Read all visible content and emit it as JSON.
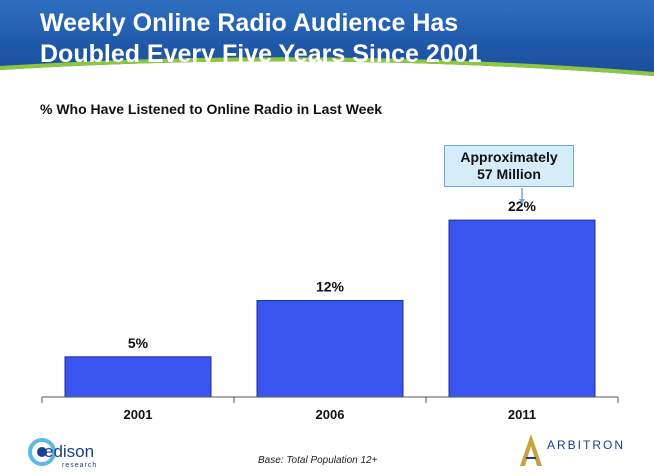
{
  "header": {
    "title_line1": "Weekly Online Radio Audience Has",
    "title_line2": "Doubled Every Five Years Since 2001",
    "accent_green": "#8dc63f",
    "bg_blue": "#1f57a8"
  },
  "chart_data": {
    "type": "bar",
    "subtitle": "% Who Have Listened to Online Radio in Last Week",
    "categories": [
      "2001",
      "2006",
      "2011"
    ],
    "values": [
      5,
      12,
      22
    ],
    "value_labels": [
      "5%",
      "12%",
      "22%"
    ],
    "ylim": [
      0,
      25
    ],
    "xlabel": "",
    "ylabel": "",
    "grid": false,
    "bar_color": "#3b55f0",
    "annotation": {
      "line1": "Approximately",
      "line2": "57 Million",
      "category": "2011"
    }
  },
  "footer": {
    "base_note": "Base:  Total Population 12+",
    "left_logo": {
      "name": "edison",
      "sub": "research"
    },
    "right_logo": {
      "name": "ARBITRON"
    }
  }
}
